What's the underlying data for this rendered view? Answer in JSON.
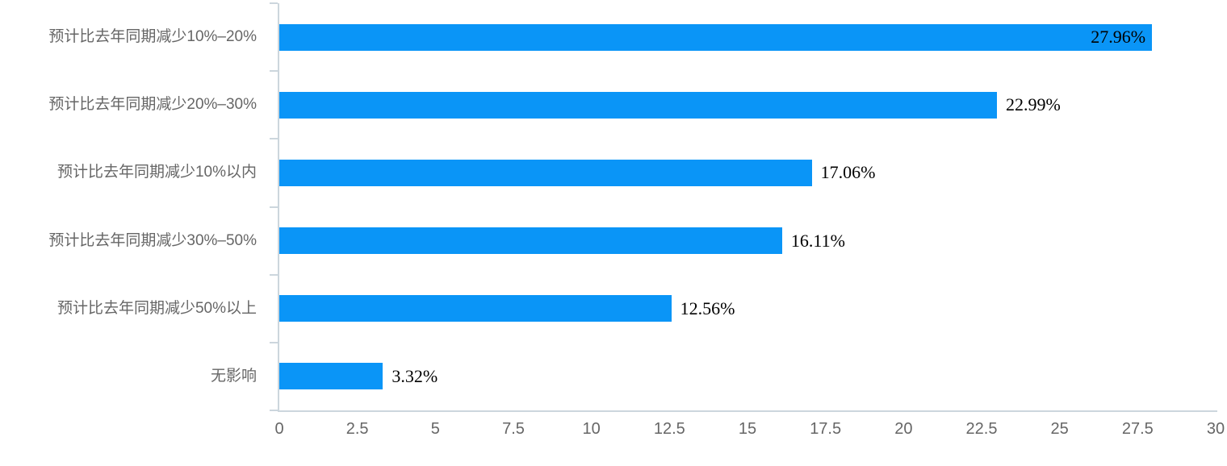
{
  "chart_data": {
    "type": "bar",
    "orientation": "horizontal",
    "title": "",
    "xlabel": "",
    "ylabel": "",
    "categories": [
      "预计比去年同期减少10%–20%",
      "预计比去年同期减少20%–30%",
      "预计比去年同期减少10%以内",
      "预计比去年同期减少30%–50%",
      "预计比去年同期减少50%以上",
      "无影响"
    ],
    "values": [
      27.96,
      22.99,
      17.06,
      16.11,
      12.56,
      3.32
    ],
    "data_labels": [
      "27.96%",
      "22.99%",
      "17.06%",
      "16.11%",
      "12.56%",
      "3.32%"
    ],
    "xlim": [
      0,
      30
    ],
    "x_tick_step": 2.5,
    "x_tick_labels": [
      "0",
      "2.5",
      "5",
      "7.5",
      "10",
      "12.5",
      "15",
      "17.5",
      "20",
      "22.5",
      "25",
      "27.5",
      "30"
    ],
    "grid": false,
    "legend": false,
    "colors": {
      "bar": "#0a95f7",
      "axis_line": "#ccd6dd",
      "tick_text": "#666666",
      "category_text": "#666666",
      "value_text": "#000000",
      "background": "#ffffff"
    }
  }
}
